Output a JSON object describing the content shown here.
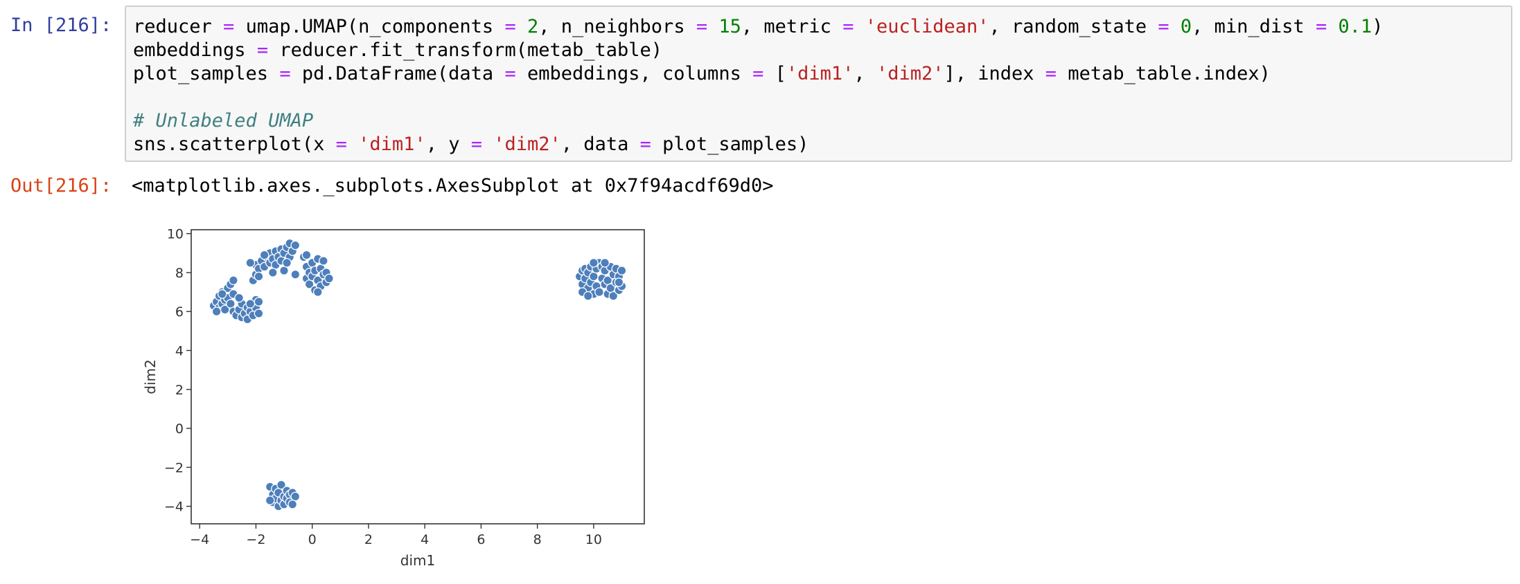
{
  "cell": {
    "in_prompt": "In [216]:",
    "out_prompt": "Out[216]:",
    "code_lines": [
      [
        [
          "t",
          "reducer "
        ],
        [
          "o",
          "="
        ],
        [
          "t",
          " umap.UMAP(n_components "
        ],
        [
          "o",
          "="
        ],
        [
          "t",
          " "
        ],
        [
          "n",
          "2"
        ],
        [
          "t",
          ", n_neighbors "
        ],
        [
          "o",
          "="
        ],
        [
          "t",
          " "
        ],
        [
          "n",
          "15"
        ],
        [
          "t",
          ", metric "
        ],
        [
          "o",
          "="
        ],
        [
          "t",
          " "
        ],
        [
          "s",
          "'euclidean'"
        ],
        [
          "t",
          ", random_state "
        ],
        [
          "o",
          "="
        ],
        [
          "t",
          " "
        ],
        [
          "n",
          "0"
        ],
        [
          "t",
          ", min_dist "
        ],
        [
          "o",
          "="
        ],
        [
          "t",
          " "
        ],
        [
          "n",
          "0.1"
        ],
        [
          "t",
          ")"
        ]
      ],
      [
        [
          "t",
          "embeddings "
        ],
        [
          "o",
          "="
        ],
        [
          "t",
          " reducer.fit_transform(metab_table)"
        ]
      ],
      [
        [
          "t",
          "plot_samples "
        ],
        [
          "o",
          "="
        ],
        [
          "t",
          " pd.DataFrame(data "
        ],
        [
          "o",
          "="
        ],
        [
          "t",
          " embeddings, columns "
        ],
        [
          "o",
          "="
        ],
        [
          "t",
          " ["
        ],
        [
          "s",
          "'dim1'"
        ],
        [
          "t",
          ", "
        ],
        [
          "s",
          "'dim2'"
        ],
        [
          "t",
          "], index "
        ],
        [
          "o",
          "="
        ],
        [
          "t",
          " metab_table.index)"
        ]
      ],
      [],
      [
        [
          "c",
          "# Unlabeled UMAP"
        ]
      ],
      [
        [
          "t",
          "sns.scatterplot(x "
        ],
        [
          "o",
          "="
        ],
        [
          "t",
          " "
        ],
        [
          "s",
          "'dim1'"
        ],
        [
          "t",
          ", y "
        ],
        [
          "o",
          "="
        ],
        [
          "t",
          " "
        ],
        [
          "s",
          "'dim2'"
        ],
        [
          "t",
          ", data "
        ],
        [
          "o",
          "="
        ],
        [
          "t",
          " plot_samples)"
        ]
      ]
    ],
    "output_text": "<matplotlib.axes._subplots.AxesSubplot at 0x7f94acdf69d0>"
  },
  "colors": {
    "point_fill": "#4e7fbb",
    "point_edge": "#ffffff",
    "in_prompt": "#303f9f",
    "out_prompt": "#d84315"
  },
  "chart_data": {
    "type": "scatter",
    "xlabel": "dim1",
    "ylabel": "dim2",
    "xlim": [
      -4.3,
      11.8
    ],
    "ylim": [
      -4.9,
      10.2
    ],
    "xticks": [
      -4,
      -2,
      0,
      2,
      4,
      6,
      8,
      10
    ],
    "yticks": [
      -4,
      -2,
      0,
      2,
      4,
      6,
      8,
      10
    ],
    "grid": false,
    "points": [
      [
        -3.5,
        6.3
      ],
      [
        -3.4,
        6.5
      ],
      [
        -3.3,
        6.2
      ],
      [
        -3.3,
        6.8
      ],
      [
        -3.2,
        6.4
      ],
      [
        -3.2,
        7.0
      ],
      [
        -3.1,
        6.6
      ],
      [
        -3.1,
        6.1
      ],
      [
        -3.0,
        7.2
      ],
      [
        -3.0,
        6.7
      ],
      [
        -2.9,
        6.4
      ],
      [
        -2.9,
        7.4
      ],
      [
        -2.8,
        6.9
      ],
      [
        -2.8,
        7.6
      ],
      [
        -3.4,
        6.0
      ],
      [
        -3.2,
        6.9
      ],
      [
        -2.8,
        6.0
      ],
      [
        -2.7,
        5.8
      ],
      [
        -2.6,
        6.1
      ],
      [
        -2.5,
        5.7
      ],
      [
        -2.5,
        6.4
      ],
      [
        -2.4,
        5.9
      ],
      [
        -2.3,
        5.6
      ],
      [
        -2.3,
        6.2
      ],
      [
        -2.2,
        6.0
      ],
      [
        -2.1,
        5.8
      ],
      [
        -2.0,
        6.2
      ],
      [
        -2.0,
        6.6
      ],
      [
        -1.9,
        5.9
      ],
      [
        -2.6,
        6.7
      ],
      [
        -2.2,
        6.4
      ],
      [
        -1.9,
        6.5
      ],
      [
        -2.1,
        7.6
      ],
      [
        -2.0,
        7.9
      ],
      [
        -2.0,
        8.4
      ],
      [
        -1.9,
        8.2
      ],
      [
        -1.8,
        8.6
      ],
      [
        -1.7,
        8.3
      ],
      [
        -1.6,
        8.8
      ],
      [
        -1.5,
        8.5
      ],
      [
        -1.5,
        9.0
      ],
      [
        -1.4,
        8.7
      ],
      [
        -1.3,
        9.1
      ],
      [
        -1.3,
        8.4
      ],
      [
        -1.2,
        8.8
      ],
      [
        -1.1,
        9.2
      ],
      [
        -1.1,
        8.6
      ],
      [
        -1.0,
        9.0
      ],
      [
        -1.0,
        8.1
      ],
      [
        -0.9,
        9.3
      ],
      [
        -0.8,
        8.8
      ],
      [
        -0.8,
        9.5
      ],
      [
        -0.7,
        9.1
      ],
      [
        -0.6,
        9.4
      ],
      [
        -0.6,
        7.9
      ],
      [
        -1.4,
        8.0
      ],
      [
        -1.7,
        8.9
      ],
      [
        -2.2,
        8.5
      ],
      [
        -1.9,
        7.8
      ],
      [
        -0.9,
        8.5
      ],
      [
        -0.3,
        8.8
      ],
      [
        -0.2,
        8.3
      ],
      [
        -0.2,
        7.7
      ],
      [
        -0.1,
        8.0
      ],
      [
        -0.1,
        7.4
      ],
      [
        0.0,
        8.5
      ],
      [
        0.0,
        7.8
      ],
      [
        0.1,
        8.1
      ],
      [
        0.1,
        7.1
      ],
      [
        0.2,
        8.7
      ],
      [
        0.2,
        7.6
      ],
      [
        0.3,
        8.2
      ],
      [
        0.3,
        7.3
      ],
      [
        0.4,
        7.9
      ],
      [
        0.4,
        8.6
      ],
      [
        0.5,
        7.5
      ],
      [
        0.5,
        8.0
      ],
      [
        0.6,
        7.7
      ],
      [
        0.2,
        7.0
      ],
      [
        -0.2,
        8.9
      ],
      [
        9.5,
        7.8
      ],
      [
        9.6,
        8.1
      ],
      [
        9.6,
        7.4
      ],
      [
        9.7,
        7.7
      ],
      [
        9.7,
        8.2
      ],
      [
        9.8,
        7.2
      ],
      [
        9.8,
        8.0
      ],
      [
        9.9,
        7.5
      ],
      [
        9.9,
        8.3
      ],
      [
        10.0,
        6.9
      ],
      [
        10.0,
        7.8
      ],
      [
        10.1,
        8.2
      ],
      [
        10.1,
        7.3
      ],
      [
        10.2,
        8.5
      ],
      [
        10.2,
        7.0
      ],
      [
        10.3,
        7.7
      ],
      [
        10.3,
        8.3
      ],
      [
        10.4,
        7.4
      ],
      [
        10.4,
        8.1
      ],
      [
        10.5,
        6.9
      ],
      [
        10.5,
        7.6
      ],
      [
        10.6,
        8.3
      ],
      [
        10.6,
        7.2
      ],
      [
        10.7,
        7.9
      ],
      [
        10.7,
        6.8
      ],
      [
        10.8,
        8.2
      ],
      [
        10.8,
        7.5
      ],
      [
        10.9,
        7.8
      ],
      [
        10.9,
        7.1
      ],
      [
        11.0,
        7.3
      ],
      [
        11.0,
        8.1
      ],
      [
        9.6,
        7.0
      ],
      [
        10.0,
        8.5
      ],
      [
        10.4,
        8.5
      ],
      [
        10.9,
        7.5
      ],
      [
        9.8,
        6.8
      ],
      [
        -1.5,
        -3.0
      ],
      [
        -1.4,
        -3.4
      ],
      [
        -1.4,
        -3.8
      ],
      [
        -1.3,
        -3.1
      ],
      [
        -1.3,
        -3.6
      ],
      [
        -1.2,
        -4.0
      ],
      [
        -1.2,
        -3.3
      ],
      [
        -1.1,
        -3.7
      ],
      [
        -1.1,
        -2.9
      ],
      [
        -1.0,
        -3.5
      ],
      [
        -1.0,
        -3.9
      ],
      [
        -0.9,
        -3.2
      ],
      [
        -0.9,
        -3.6
      ],
      [
        -0.8,
        -3.4
      ],
      [
        -0.8,
        -3.8
      ],
      [
        -0.7,
        -3.3
      ],
      [
        -0.6,
        -3.5
      ],
      [
        -1.5,
        -3.7
      ],
      [
        -0.7,
        -3.9
      ]
    ]
  }
}
